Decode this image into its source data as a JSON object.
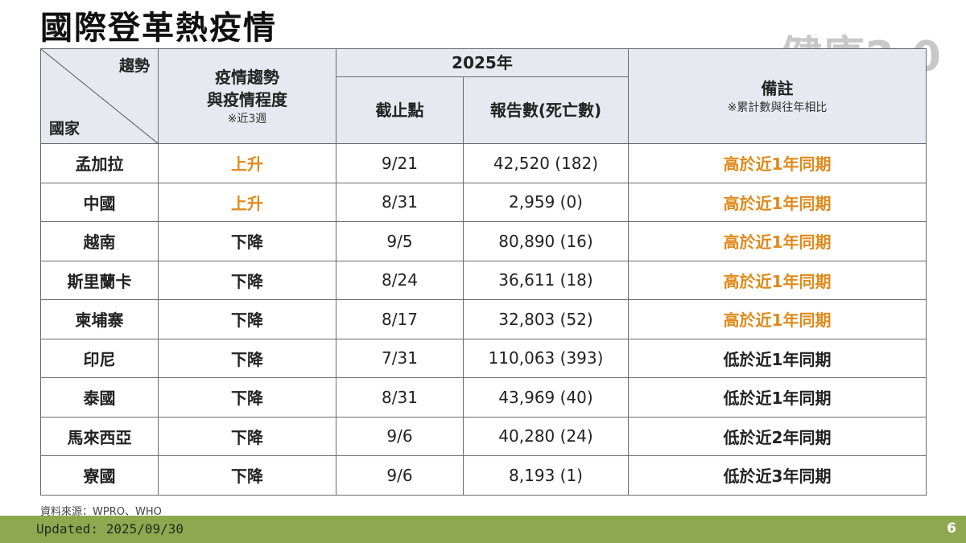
{
  "title": "國際登革熱疫情",
  "logo": "健康2.0",
  "table": {
    "diag_top": "趨勢",
    "diag_bottom": "國家",
    "trend_header": "疫情趨勢\n與疫情程度",
    "trend_sub": "※近3週",
    "year_header": "2025年",
    "cutoff_header": "截止點",
    "reports_header": "報告數(死亡數)",
    "note_header": "備註",
    "note_sub": "※累計數與往年相比",
    "rows": [
      {
        "country": "孟加拉",
        "trend": "上升",
        "cutoff": "9/21",
        "reports": "42,520 (182)",
        "note": "高於近1年同期",
        "trend_color": "orange",
        "note_color": "orange"
      },
      {
        "country": "中國",
        "trend": "上升",
        "cutoff": "8/31",
        "reports": "2,959 (0)",
        "note": "高於近1年同期",
        "trend_color": "orange",
        "note_color": "orange"
      },
      {
        "country": "越南",
        "trend": "下降",
        "cutoff": "9/5",
        "reports": "80,890 (16)",
        "note": "高於近1年同期",
        "trend_color": "dark",
        "note_color": "orange"
      },
      {
        "country": "斯里蘭卡",
        "trend": "下降",
        "cutoff": "8/24",
        "reports": "36,611 (18)",
        "note": "高於近1年同期",
        "trend_color": "dark",
        "note_color": "orange"
      },
      {
        "country": "柬埔寨",
        "trend": "下降",
        "cutoff": "8/17",
        "reports": "32,803 (52)",
        "note": "高於近1年同期",
        "trend_color": "dark",
        "note_color": "orange"
      },
      {
        "country": "印尼",
        "trend": "下降",
        "cutoff": "7/31",
        "reports": "110,063 (393)",
        "note": "低於近1年同期",
        "trend_color": "dark",
        "note_color": "dark"
      },
      {
        "country": "泰國",
        "trend": "下降",
        "cutoff": "8/31",
        "reports": "43,969 (40)",
        "note": "低於近1年同期",
        "trend_color": "dark",
        "note_color": "dark"
      },
      {
        "country": "馬來西亞",
        "trend": "下降",
        "cutoff": "9/6",
        "reports": "40,280 (24)",
        "note": "低於近2年同期",
        "trend_color": "dark",
        "note_color": "dark"
      },
      {
        "country": "寮國",
        "trend": "下降",
        "cutoff": "9/6",
        "reports": "8,193 (1)",
        "note": "低於近3年同期",
        "trend_color": "dark",
        "note_color": "dark"
      }
    ]
  },
  "source": {
    "label": "資料來源：",
    "link1": "WPRO",
    "sep": "、",
    "link2": "WHO"
  },
  "footer": {
    "updated": "Updated: 2025/09/30",
    "page": "6"
  },
  "colors": {
    "orange": "#e08a1a",
    "footer_bg": "#8ea84f",
    "header_bg": "#e6e9ef"
  }
}
